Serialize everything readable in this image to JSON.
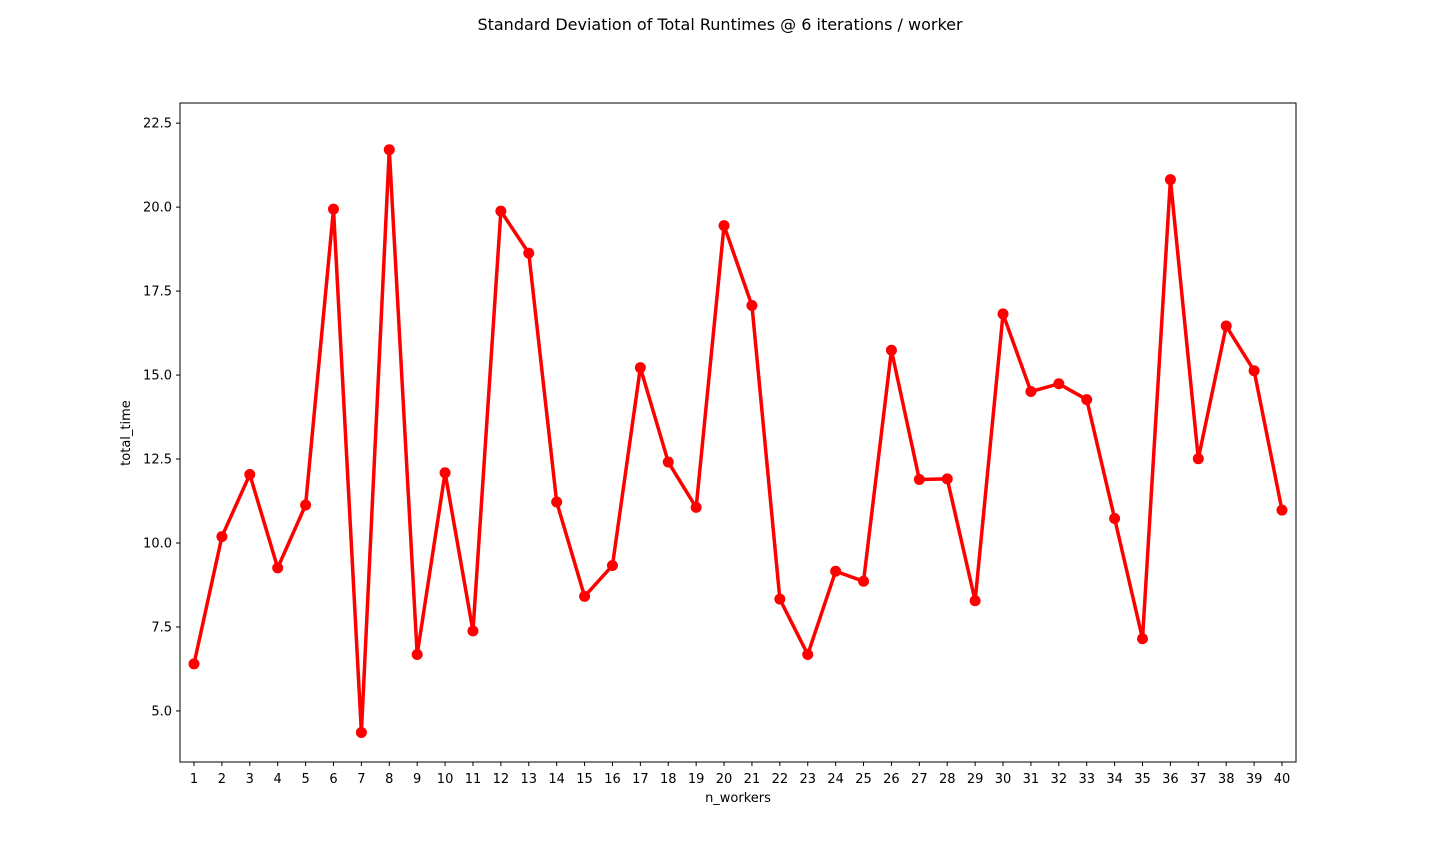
{
  "chart_data": {
    "type": "line",
    "title": "Standard Deviation of Total Runtimes @ 6 iterations / worker",
    "xlabel": "n_workers",
    "ylabel": "total_time",
    "categories": [
      "1",
      "2",
      "3",
      "4",
      "5",
      "6",
      "7",
      "8",
      "9",
      "10",
      "11",
      "12",
      "13",
      "14",
      "15",
      "16",
      "17",
      "18",
      "19",
      "20",
      "21",
      "22",
      "23",
      "24",
      "25",
      "26",
      "27",
      "28",
      "29",
      "30",
      "31",
      "32",
      "33",
      "34",
      "35",
      "36",
      "37",
      "38",
      "39",
      "40"
    ],
    "series": [
      {
        "color": "#ff0000",
        "values": [
          6.4,
          10.19,
          12.04,
          9.26,
          11.13,
          19.94,
          4.36,
          21.71,
          6.68,
          12.09,
          7.38,
          19.88,
          18.63,
          11.22,
          8.41,
          9.33,
          15.22,
          12.41,
          11.06,
          19.45,
          17.07,
          8.33,
          6.68,
          9.16,
          8.86,
          15.74,
          11.89,
          11.91,
          8.28,
          16.82,
          14.51,
          14.74,
          14.27,
          10.73,
          7.15,
          20.82,
          12.51,
          16.46,
          15.13,
          10.98
        ]
      }
    ],
    "yticks": [
      "5.0",
      "7.5",
      "10.0",
      "12.5",
      "15.0",
      "17.5",
      "20.0",
      "22.5"
    ],
    "ylim": [
      3.48,
      23.1
    ],
    "grid": false,
    "legend": "none"
  }
}
